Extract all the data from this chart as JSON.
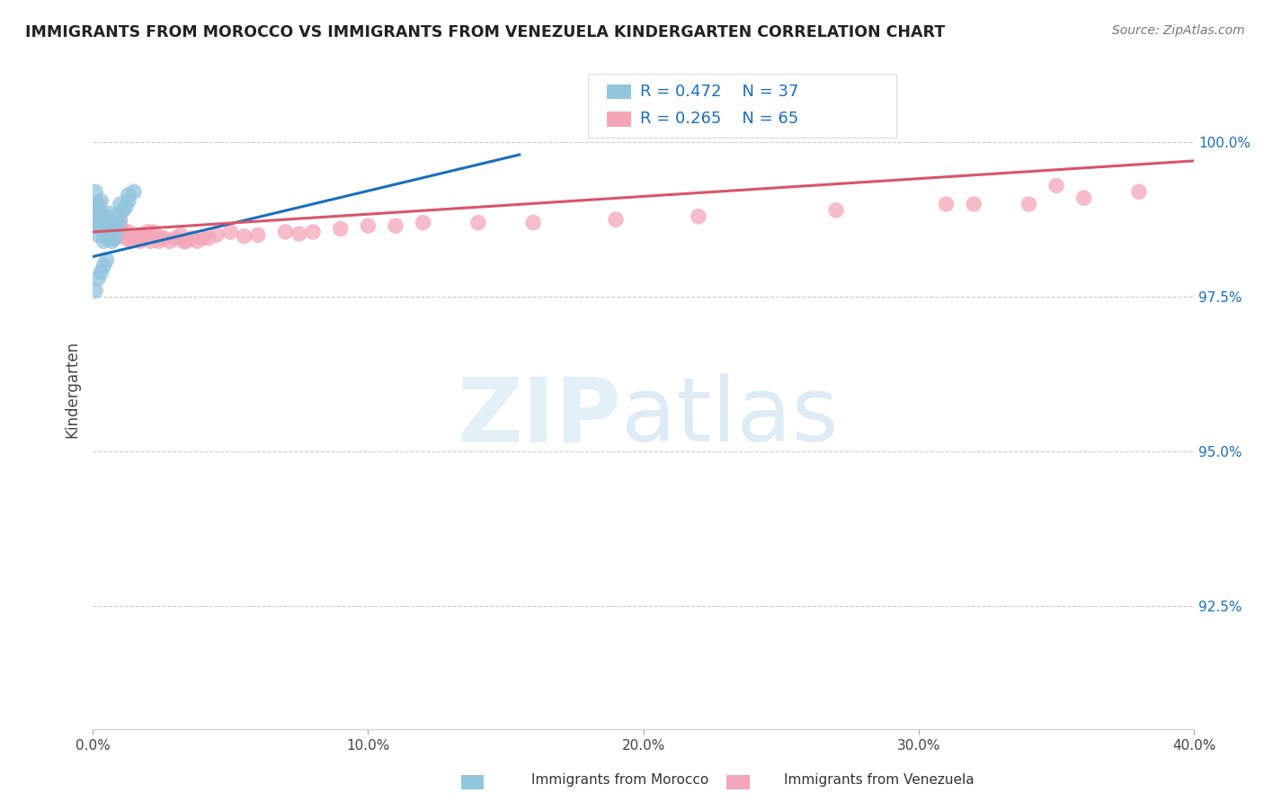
{
  "title": "IMMIGRANTS FROM MOROCCO VS IMMIGRANTS FROM VENEZUELA KINDERGARTEN CORRELATION CHART",
  "source": "Source: ZipAtlas.com",
  "ylabel": "Kindergarten",
  "ytick_values": [
    0.925,
    0.95,
    0.975,
    1.0
  ],
  "xlim": [
    0.0,
    0.4
  ],
  "ylim": [
    0.905,
    1.015
  ],
  "label_morocco": "Immigrants from Morocco",
  "label_venezuela": "Immigrants from Venezuela",
  "color_blue": "#92c5de",
  "color_pink": "#f4a6b8",
  "color_line_blue": "#1a6fbd",
  "color_line_pink": "#d9556b",
  "color_legend_text": "#1a6fbd",
  "morocco_x": [
    0.0005,
    0.001,
    0.001,
    0.0015,
    0.002,
    0.002,
    0.002,
    0.003,
    0.003,
    0.003,
    0.004,
    0.004,
    0.004,
    0.005,
    0.005,
    0.005,
    0.006,
    0.006,
    0.006,
    0.007,
    0.007,
    0.008,
    0.008,
    0.009,
    0.009,
    0.01,
    0.01,
    0.011,
    0.012,
    0.013,
    0.001,
    0.002,
    0.003,
    0.004,
    0.005,
    0.015,
    0.013
  ],
  "morocco_y": [
    0.9885,
    0.987,
    0.992,
    0.99,
    0.987,
    0.989,
    0.985,
    0.986,
    0.988,
    0.9905,
    0.984,
    0.987,
    0.9855,
    0.9845,
    0.9865,
    0.988,
    0.9855,
    0.987,
    0.9885,
    0.984,
    0.9855,
    0.9845,
    0.987,
    0.986,
    0.988,
    0.9875,
    0.99,
    0.989,
    0.9895,
    0.9905,
    0.976,
    0.978,
    0.979,
    0.98,
    0.981,
    0.992,
    0.9915
  ],
  "morocco_line_x": [
    0.0,
    0.155
  ],
  "morocco_line_y": [
    0.9815,
    0.998
  ],
  "venezuela_x": [
    0.001,
    0.001,
    0.002,
    0.002,
    0.003,
    0.003,
    0.004,
    0.004,
    0.005,
    0.005,
    0.006,
    0.006,
    0.007,
    0.007,
    0.008,
    0.008,
    0.009,
    0.01,
    0.01,
    0.011,
    0.012,
    0.013,
    0.014,
    0.015,
    0.016,
    0.017,
    0.018,
    0.019,
    0.02,
    0.021,
    0.022,
    0.024,
    0.025,
    0.026,
    0.028,
    0.03,
    0.032,
    0.034,
    0.036,
    0.038,
    0.04,
    0.045,
    0.05,
    0.06,
    0.07,
    0.08,
    0.09,
    0.1,
    0.12,
    0.14,
    0.16,
    0.19,
    0.22,
    0.27,
    0.31,
    0.34,
    0.36,
    0.38,
    0.32,
    0.35,
    0.033,
    0.042,
    0.055,
    0.075,
    0.11
  ],
  "venezuela_y": [
    0.989,
    0.987,
    0.988,
    0.99,
    0.987,
    0.9885,
    0.986,
    0.9875,
    0.986,
    0.9875,
    0.9855,
    0.9865,
    0.985,
    0.987,
    0.9855,
    0.9845,
    0.986,
    0.985,
    0.9865,
    0.9855,
    0.9845,
    0.9855,
    0.984,
    0.9845,
    0.985,
    0.984,
    0.9845,
    0.985,
    0.9855,
    0.984,
    0.9855,
    0.984,
    0.9845,
    0.9845,
    0.984,
    0.9845,
    0.985,
    0.984,
    0.9845,
    0.984,
    0.9845,
    0.985,
    0.9855,
    0.985,
    0.9855,
    0.9855,
    0.986,
    0.9865,
    0.987,
    0.987,
    0.987,
    0.9875,
    0.988,
    0.989,
    0.99,
    0.99,
    0.991,
    0.992,
    0.99,
    0.993,
    0.984,
    0.9845,
    0.9848,
    0.9852,
    0.9865
  ],
  "venezuela_line_x": [
    0.0,
    0.4
  ],
  "venezuela_line_y": [
    0.9855,
    0.997
  ]
}
